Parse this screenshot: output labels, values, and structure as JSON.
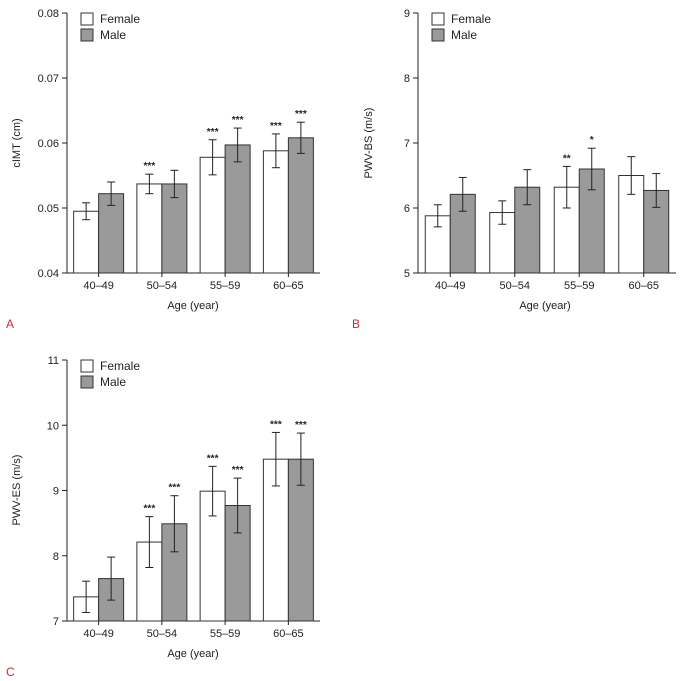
{
  "colors": {
    "female": "#ffffff",
    "male": "#9a9a9a",
    "stroke": "#333333",
    "panel_letter": "#cc2a36"
  },
  "chart_data": [
    {
      "type": "bar",
      "panel": "A",
      "xlabel": "Age (year)",
      "ylabel": "cIMT (cm)",
      "ylim": [
        0.04,
        0.08
      ],
      "yticks": [
        0.04,
        0.05,
        0.06,
        0.07,
        0.08
      ],
      "ytick_labels": [
        "0.04",
        "0.05",
        "0.06",
        "0.07",
        "0.08"
      ],
      "categories": [
        "40–49",
        "50–54",
        "55–59",
        "60–65"
      ],
      "series": [
        {
          "name": "Female",
          "values": [
            0.0495,
            0.0537,
            0.0578,
            0.0588
          ],
          "errors": [
            0.0013,
            0.0015,
            0.0027,
            0.0026
          ],
          "sig": [
            "",
            "***",
            "***",
            "***"
          ]
        },
        {
          "name": "Male",
          "values": [
            0.0522,
            0.0537,
            0.0597,
            0.0608
          ],
          "errors": [
            0.0018,
            0.0021,
            0.0026,
            0.0024
          ],
          "sig": [
            "",
            "",
            "***",
            "***"
          ]
        }
      ]
    },
    {
      "type": "bar",
      "panel": "B",
      "xlabel": "Age (year)",
      "ylabel": "PWV-BS (m/s)",
      "ylim": [
        5,
        9
      ],
      "yticks": [
        5,
        6,
        7,
        8,
        9
      ],
      "ytick_labels": [
        "5",
        "6",
        "7",
        "8",
        "9"
      ],
      "categories": [
        "40–49",
        "50–54",
        "55–59",
        "60–65"
      ],
      "series": [
        {
          "name": "Female",
          "values": [
            5.88,
            5.93,
            6.32,
            6.5
          ],
          "errors": [
            0.17,
            0.18,
            0.32,
            0.29
          ],
          "sig": [
            "",
            "",
            "**",
            ""
          ]
        },
        {
          "name": "Male",
          "values": [
            6.21,
            6.32,
            6.6,
            6.27
          ],
          "errors": [
            0.26,
            0.27,
            0.32,
            0.26
          ],
          "sig": [
            "",
            "",
            "*",
            ""
          ]
        }
      ]
    },
    {
      "type": "bar",
      "panel": "C",
      "xlabel": "Age (year)",
      "ylabel": "PWV-ES (m/s)",
      "ylim": [
        7,
        11
      ],
      "yticks": [
        7,
        8,
        9,
        10,
        11
      ],
      "ytick_labels": [
        "7",
        "8",
        "9",
        "10",
        "11"
      ],
      "categories": [
        "40–49",
        "50–54",
        "55–59",
        "60–65"
      ],
      "series": [
        {
          "name": "Female",
          "values": [
            7.37,
            8.21,
            8.99,
            9.48
          ],
          "errors": [
            0.24,
            0.39,
            0.38,
            0.41
          ],
          "sig": [
            "",
            "***",
            "***",
            "***"
          ]
        },
        {
          "name": "Male",
          "values": [
            7.65,
            8.49,
            8.77,
            9.48
          ],
          "errors": [
            0.33,
            0.43,
            0.42,
            0.4
          ],
          "sig": [
            "",
            "***",
            "***",
            "***"
          ]
        }
      ]
    }
  ]
}
